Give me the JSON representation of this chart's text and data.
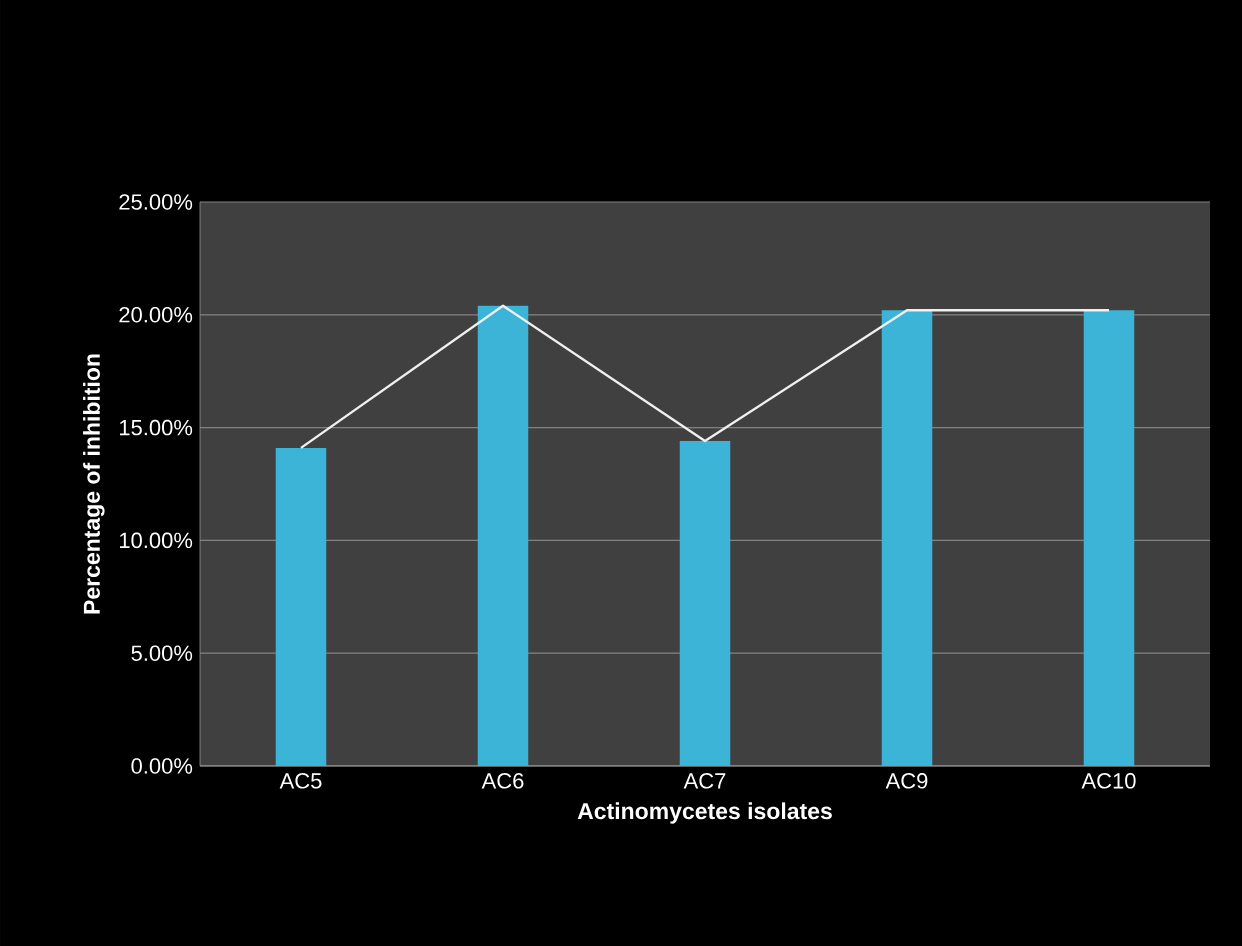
{
  "chart_data": {
    "type": "bar",
    "xlabel": "Actinomycetes isolates",
    "ylabel": "Percentage of inhibition",
    "categories": [
      "AC5",
      "AC6",
      "AC7",
      "AC9",
      "AC10"
    ],
    "series": [
      {
        "color": "#3bb4d8",
        "values": [
          14.1,
          20.4,
          14.4,
          20.2,
          20.2
        ]
      },
      {
        "type": "line",
        "color": "#f0f0f0",
        "values": [
          14.1,
          20.4,
          14.4,
          20.2,
          20.2
        ]
      }
    ],
    "ylim": [
      0,
      25
    ],
    "yticks": [
      {
        "value": 0,
        "label": "0.00%"
      },
      {
        "value": 5,
        "label": "5.00%"
      },
      {
        "value": 10,
        "label": "10.00%"
      },
      {
        "value": 15,
        "label": "15.00%"
      },
      {
        "value": 20,
        "label": "20.00%"
      },
      {
        "value": 25,
        "label": "25.00%"
      }
    ],
    "grid": "y"
  }
}
